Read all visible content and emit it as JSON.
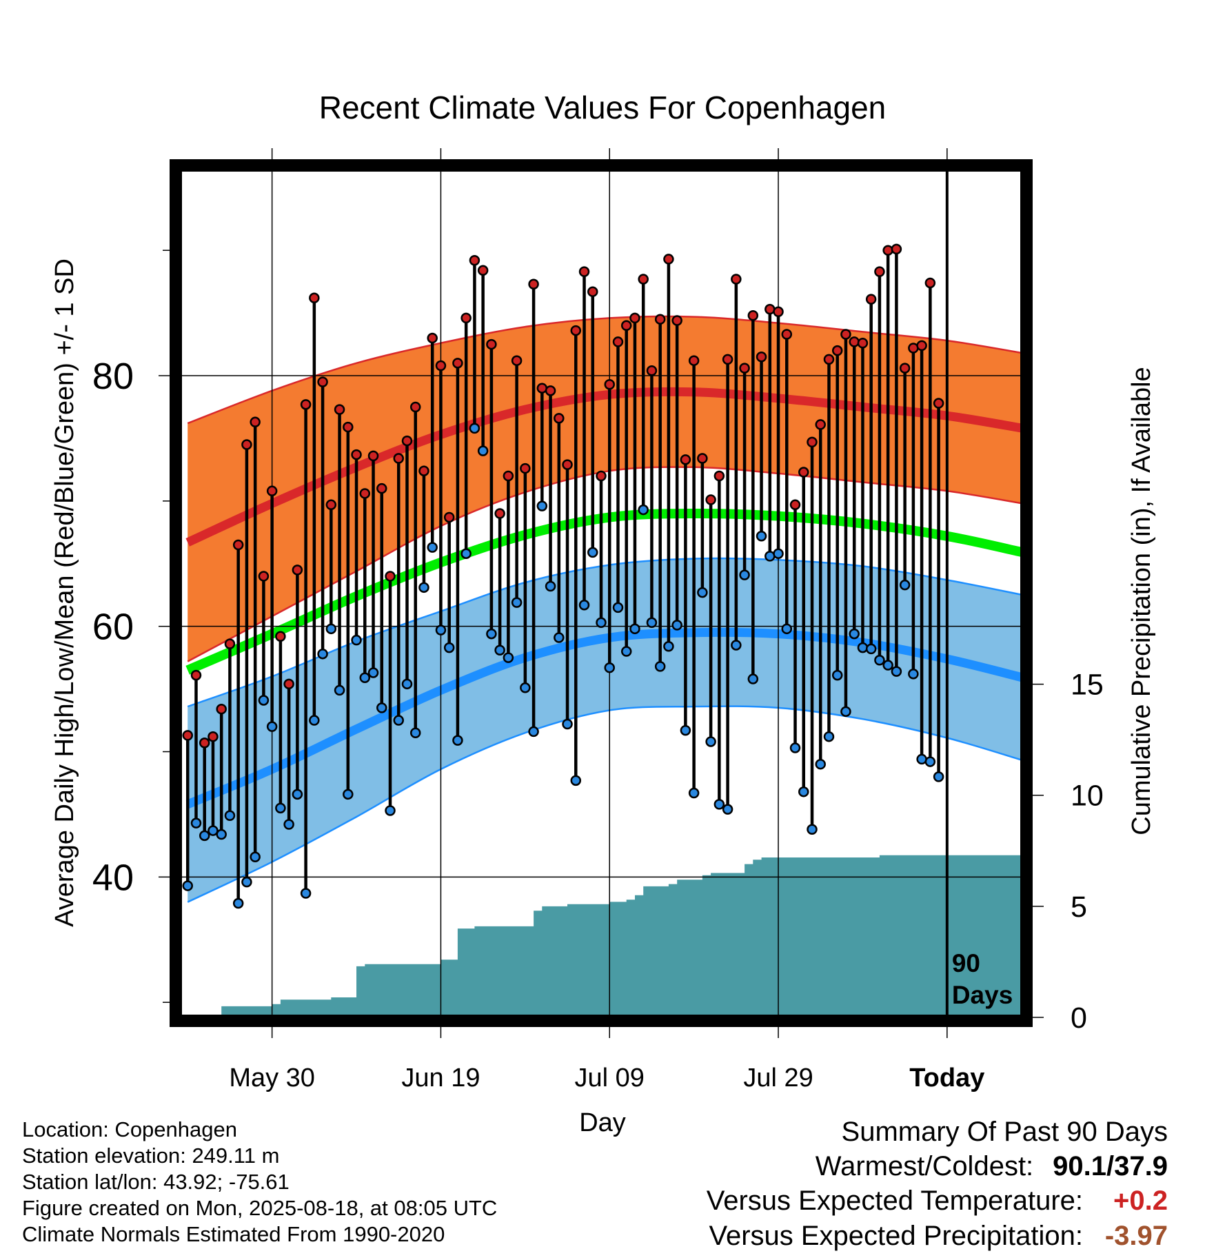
{
  "title": "Recent Climate Values For Copenhagen",
  "info": {
    "location": "Location: Copenhagen",
    "elevation": "Station elevation: 249.11 m",
    "latlon": "Station lat/lon: 43.92; -75.61",
    "created": "Figure created on Mon, 2025-08-18, at 08:05 UTC",
    "normals": "Climate Normals Estimated From 1990-2020"
  },
  "summary": {
    "heading": "Summary Of Past 90 Days",
    "warm_cold_label": "Warmest/Coldest:",
    "warm_cold_value": "90.1/37.9",
    "temp_label": "Versus Expected Temperature:",
    "temp_value": "+0.2",
    "precip_label": "Versus Expected Precipitation:",
    "precip_value": "-3.97"
  },
  "chart_data": {
    "type": "line",
    "xlabel": "Day",
    "ylabel": "Average Daily High/Low/Mean (Red/Blue/Green) +/- 1 SD",
    "y2label": "Cumulative Precipitation (in), If Available",
    "x_range_days": [
      -91,
      9
    ],
    "x_ticks": [
      {
        "day": -80,
        "label": "May 30"
      },
      {
        "day": -60,
        "label": "Jun 19"
      },
      {
        "day": -40,
        "label": "Jul 09"
      },
      {
        "day": -20,
        "label": "Jul 29"
      },
      {
        "day": 0,
        "label": "Today"
      }
    ],
    "y_range": [
      28.8,
      96.5
    ],
    "y_ticks": [
      40,
      60,
      80
    ],
    "y2_range": [
      0,
      38.2
    ],
    "y2_ticks": [
      0,
      5,
      10,
      15
    ],
    "today_marker": "90\nDays",
    "colors": {
      "high_band": "#f47b30",
      "high_mean": "#d9282a",
      "low_band": "#80bee6",
      "low_mean": "#1e8fff",
      "mean": "#00ee00",
      "precip": "#4a9ba4",
      "warm_dot": "#cc2222",
      "cold_dot": "#2a88e0",
      "temp_anomaly": "#cc2222",
      "precip_anomaly": "#a0522d"
    },
    "normals": {
      "days": [
        -90,
        -80,
        -70,
        -60,
        -50,
        -40,
        -30,
        -20,
        -10,
        0,
        9
      ],
      "high_mean": [
        66.7,
        69.8,
        72.7,
        75.3,
        77.3,
        78.5,
        78.7,
        78.2,
        77.5,
        76.8,
        75.8
      ],
      "high_sd": [
        9.5,
        9.0,
        8.3,
        7.3,
        6.6,
        6.1,
        6.0,
        6.0,
        6.0,
        6.0,
        6.0
      ],
      "low_mean": [
        45.8,
        48.6,
        51.8,
        54.9,
        57.5,
        59.1,
        59.5,
        59.4,
        58.7,
        57.4,
        55.9
      ],
      "low_sd": [
        7.8,
        7.4,
        7.0,
        6.3,
        6.0,
        5.8,
        5.9,
        5.9,
        6.1,
        6.3,
        6.6
      ],
      "mean": [
        56.5,
        59.4,
        62.4,
        65.1,
        67.3,
        68.7,
        69.0,
        68.8,
        68.2,
        67.2,
        65.9
      ]
    },
    "observed": {
      "days": [
        -90,
        -89,
        -88,
        -87,
        -86,
        -85,
        -84,
        -83,
        -82,
        -81,
        -80,
        -79,
        -78,
        -77,
        -76,
        -75,
        -74,
        -73,
        -72,
        -71,
        -70,
        -69,
        -68,
        -67,
        -66,
        -65,
        -64,
        -63,
        -62,
        -61,
        -60,
        -59,
        -58,
        -57,
        -56,
        -55,
        -54,
        -53,
        -52,
        -51,
        -50,
        -49,
        -48,
        -47,
        -46,
        -45,
        -44,
        -43,
        -42,
        -41,
        -40,
        -39,
        -38,
        -37,
        -36,
        -35,
        -34,
        -33,
        -32,
        -31,
        -30,
        -29,
        -28,
        -27,
        -26,
        -25,
        -24,
        -23,
        -22,
        -21,
        -20,
        -19,
        -18,
        -17,
        -16,
        -15,
        -14,
        -13,
        -12,
        -11,
        -10,
        -9,
        -8,
        -7,
        -6,
        -5,
        -4,
        -3,
        -2,
        -1
      ],
      "high": [
        51.3,
        56.1,
        50.7,
        51.2,
        53.4,
        58.6,
        66.5,
        74.5,
        76.3,
        64.0,
        70.8,
        59.2,
        55.4,
        64.5,
        77.7,
        86.2,
        79.5,
        69.7,
        77.3,
        75.9,
        73.7,
        70.6,
        73.6,
        71.0,
        64.0,
        73.4,
        74.8,
        77.5,
        72.4,
        83.0,
        80.8,
        68.7,
        81.0,
        84.6,
        89.2,
        88.4,
        82.5,
        69.0,
        72.0,
        81.2,
        72.6,
        87.3,
        79.0,
        78.8,
        76.6,
        72.9,
        83.6,
        88.3,
        86.7,
        72.0,
        79.3,
        82.7,
        84.0,
        84.6,
        87.7,
        80.4,
        84.5,
        89.3,
        84.4,
        73.3,
        81.2,
        73.4,
        70.1,
        72.0,
        81.3,
        87.7,
        80.6,
        84.8,
        81.5,
        85.3,
        85.1,
        83.3,
        69.7,
        72.3,
        74.7,
        76.1,
        81.3,
        82.0,
        83.3,
        82.7,
        82.6,
        86.1,
        88.3,
        90.0,
        90.1,
        80.6,
        82.2,
        82.4,
        87.4,
        77.8
      ],
      "low": [
        39.3,
        44.3,
        43.3,
        43.7,
        43.4,
        44.9,
        37.9,
        39.6,
        41.6,
        54.1,
        52.0,
        45.5,
        44.2,
        46.6,
        38.7,
        52.5,
        57.8,
        59.8,
        54.9,
        46.6,
        58.9,
        55.9,
        56.3,
        53.5,
        45.3,
        52.5,
        55.4,
        51.5,
        63.1,
        66.3,
        59.7,
        58.3,
        50.9,
        65.8,
        75.8,
        74.0,
        59.4,
        58.1,
        57.5,
        61.9,
        55.1,
        51.6,
        69.6,
        63.2,
        59.1,
        52.2,
        47.7,
        61.7,
        65.9,
        60.3,
        56.7,
        61.5,
        58.0,
        59.8,
        69.3,
        60.3,
        56.8,
        58.4,
        60.1,
        51.7,
        46.7,
        62.7,
        50.8,
        45.8,
        45.4,
        58.5,
        64.1,
        55.8,
        67.2,
        65.6,
        65.8,
        59.8,
        50.3,
        46.8,
        43.8,
        49.0,
        51.2,
        56.1,
        53.2,
        59.4,
        58.3,
        58.2,
        57.3,
        56.9,
        56.4,
        63.3,
        56.2,
        49.4,
        49.2,
        48.0
      ]
    },
    "precip_cumulative": {
      "days": [
        -91,
        -86,
        -84,
        -82,
        -80,
        -79,
        -78,
        -75,
        -73,
        -71,
        -70,
        -69,
        -66,
        -61,
        -60,
        -59,
        -58,
        -56,
        -55,
        -50,
        -49,
        -48,
        -46,
        -45,
        -42,
        -40,
        -38,
        -37,
        -36,
        -34,
        -33,
        -32,
        -31,
        -29,
        -28,
        -27,
        -24,
        -23,
        -22,
        -20,
        -15,
        -14,
        -8,
        -7,
        9
      ],
      "values": [
        0.0,
        0.5,
        0.5,
        0.5,
        0.6,
        0.8,
        0.8,
        0.8,
        0.9,
        0.9,
        2.3,
        2.4,
        2.4,
        2.4,
        2.6,
        2.6,
        4.0,
        4.1,
        4.1,
        4.1,
        4.8,
        5.0,
        5.0,
        5.1,
        5.1,
        5.2,
        5.3,
        5.5,
        5.9,
        5.9,
        6.0,
        6.2,
        6.2,
        6.4,
        6.5,
        6.5,
        6.9,
        7.1,
        7.2,
        7.2,
        7.2,
        7.2,
        7.3,
        7.3,
        7.3
      ]
    }
  }
}
